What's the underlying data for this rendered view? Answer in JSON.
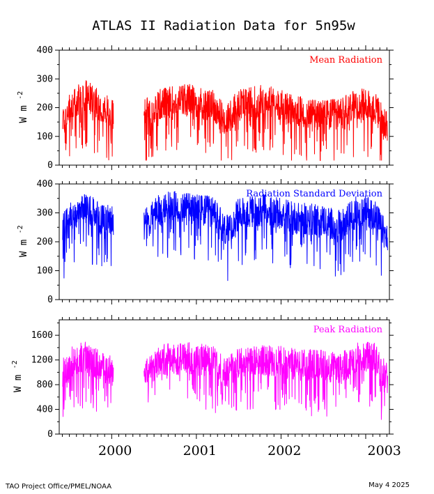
{
  "chart_data": {
    "title": "ATLAS II Radiation Data for 5n95w",
    "footer_left": "TAO Project Office/PMEL/NOAA",
    "footer_right": "May  4 2025",
    "x_ticks": [
      {
        "label": "2000",
        "x": 2000.0
      },
      {
        "label": "2001",
        "x": 2001.0
      },
      {
        "label": "2002",
        "x": 2002.0
      },
      {
        "label": "2003",
        "x": 2003.0
      }
    ],
    "xlim": [
      1999.38,
      2003.28
    ],
    "gap": [
      2000.02,
      2000.38
    ],
    "panels": [
      {
        "type": "line",
        "name": "Mean Radiation",
        "color": "#ff0000",
        "ylabel": "W m",
        "ylabel_sup": "-2",
        "ylim": [
          0,
          400
        ],
        "yticks": [
          0,
          100,
          200,
          300,
          400
        ],
        "series": [
          {
            "name": "Mean Radiation",
            "x": [
              1999.42,
              1999.55,
              1999.7,
              1999.85,
              2000.02,
              2000.38,
              2000.6,
              2000.9,
              2001.2,
              2001.35,
              2001.5,
              2001.8,
              2002.0,
              2002.2,
              2002.5,
              2002.7,
              2002.9,
              2003.1,
              2003.25
            ],
            "values": [
              150,
              220,
              240,
              210,
              175,
              180,
              215,
              230,
              205,
              150,
              215,
              225,
              210,
              185,
              175,
              175,
              215,
              200,
              140
            ]
          }
        ]
      },
      {
        "type": "line",
        "name": "Radiation Standard Deviation",
        "color": "#0000ff",
        "ylabel": "W m",
        "ylabel_sup": "-2",
        "ylim": [
          0,
          400
        ],
        "yticks": [
          0,
          100,
          200,
          300,
          400
        ],
        "series": [
          {
            "name": "Radiation Standard Deviation",
            "x": [
              1999.42,
              1999.55,
              1999.7,
              1999.85,
              2000.02,
              2000.38,
              2000.6,
              2000.9,
              2001.2,
              2001.35,
              2001.5,
              2001.8,
              2002.0,
              2002.2,
              2002.5,
              2002.7,
              2002.9,
              2003.1,
              2003.25
            ],
            "values": [
              240,
              300,
              320,
              280,
              270,
              255,
              320,
              320,
              300,
              235,
              295,
              310,
              300,
              280,
              275,
              250,
              310,
              300,
              210
            ]
          }
        ]
      },
      {
        "type": "line",
        "name": "Peak Radiation",
        "color": "#ff00ff",
        "ylabel": "W m",
        "ylabel_sup": "-2",
        "ylim": [
          0,
          1850
        ],
        "yticks": [
          0,
          400,
          800,
          1200,
          1600
        ],
        "series": [
          {
            "name": "Peak Radiation",
            "x": [
              1999.42,
              1999.55,
              1999.7,
              1999.85,
              2000.02,
              2000.38,
              2000.6,
              2000.9,
              2001.2,
              2001.35,
              2001.5,
              2001.8,
              2002.0,
              2002.2,
              2002.5,
              2002.7,
              2002.9,
              2003.1,
              2003.25
            ],
            "values": [
              960,
              1200,
              1250,
              1120,
              1000,
              980,
              1200,
              1230,
              1180,
              1000,
              1150,
              1200,
              1170,
              1120,
              1120,
              1050,
              1230,
              1250,
              900
            ]
          }
        ]
      }
    ]
  }
}
